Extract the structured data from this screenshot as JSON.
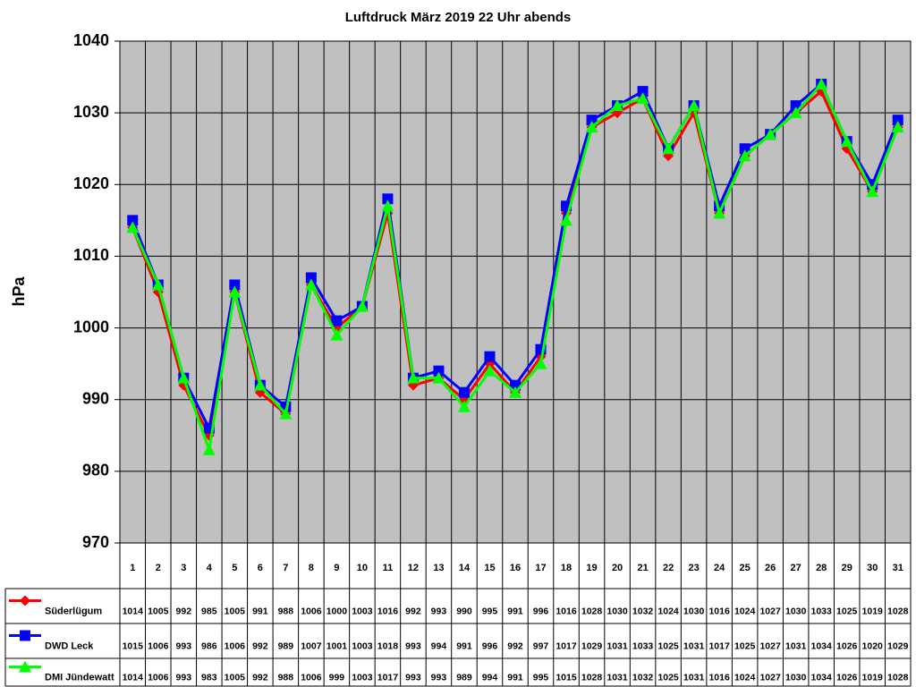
{
  "chart_data": {
    "type": "line",
    "title": "Luftdruck März 2019 22 Uhr abends",
    "y_label": "hPa",
    "categories": [
      "1",
      "2",
      "3",
      "4",
      "5",
      "6",
      "7",
      "8",
      "9",
      "10",
      "11",
      "12",
      "13",
      "14",
      "15",
      "16",
      "17",
      "18",
      "19",
      "20",
      "21",
      "22",
      "23",
      "24",
      "25",
      "26",
      "27",
      "28",
      "29",
      "30",
      "31"
    ],
    "series": [
      {
        "name": "Süderlügum",
        "color": "#ff0000",
        "marker": "diamond",
        "values": [
          1014,
          1005,
          992,
          985,
          1005,
          991,
          988,
          1006,
          1000,
          1003,
          1016,
          992,
          993,
          990,
          995,
          991,
          996,
          1016,
          1028,
          1030,
          1032,
          1024,
          1030,
          1016,
          1024,
          1027,
          1030,
          1033,
          1025,
          1019,
          1028
        ]
      },
      {
        "name": "DWD Leck",
        "color": "#0000ff",
        "marker": "square",
        "values": [
          1015,
          1006,
          993,
          986,
          1006,
          992,
          989,
          1007,
          1001,
          1003,
          1018,
          993,
          994,
          991,
          996,
          992,
          997,
          1017,
          1029,
          1031,
          1033,
          1025,
          1031,
          1017,
          1025,
          1027,
          1031,
          1034,
          1026,
          1020,
          1029
        ]
      },
      {
        "name": "DMI Jündewatt",
        "color": "#00ff00",
        "marker": "triangle",
        "values": [
          1014,
          1006,
          993,
          983,
          1005,
          992,
          988,
          1006,
          999,
          1003,
          1017,
          993,
          993,
          989,
          994,
          991,
          995,
          1015,
          1028,
          1031,
          1032,
          1025,
          1031,
          1016,
          1024,
          1027,
          1030,
          1034,
          1026,
          1019,
          1028
        ]
      }
    ],
    "ylim": [
      970,
      1040
    ],
    "yticks": [
      970,
      980,
      990,
      1000,
      1010,
      1020,
      1030,
      1040
    ],
    "grid": true,
    "plot_background": "#c0c0c0"
  }
}
